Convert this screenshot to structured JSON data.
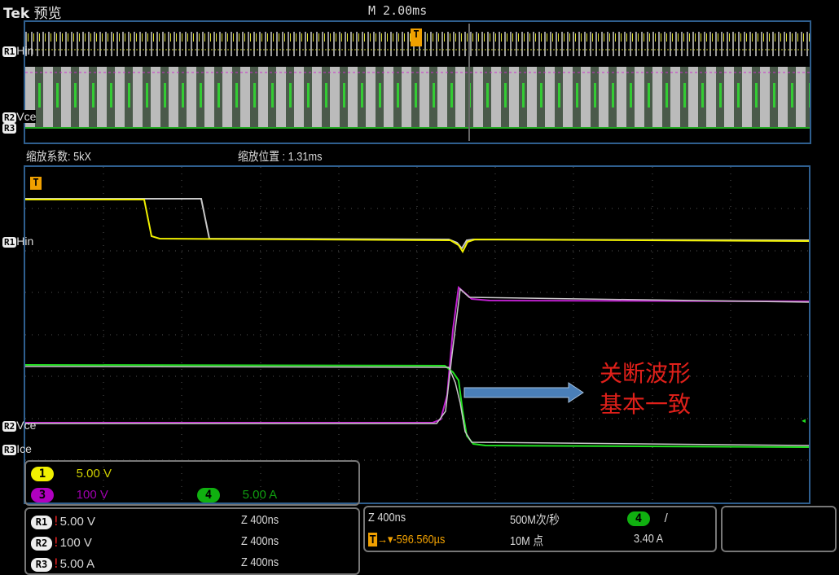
{
  "header": {
    "brand": "Tek",
    "mode": "预览",
    "timebase": "M 2.00ms"
  },
  "overview": {
    "labels": {
      "r1": "R1",
      "hin": "Hin",
      "r2": "R2",
      "r3": "R3",
      "vce": "Vce"
    },
    "trigger": "T"
  },
  "zoom_info": {
    "factor": "缩放系数: 5kX",
    "position_label": "缩放位置",
    "position_value": ": 1.31ms"
  },
  "main": {
    "trigger": "T",
    "labels": {
      "r1": "R1",
      "hin": "Hin",
      "r2": "R2",
      "vce": "Vce",
      "r3": "R3",
      "ice": "Ice"
    }
  },
  "annotation": {
    "line1": "关断波形",
    "line2": "基本一致"
  },
  "channels": [
    {
      "num": "1",
      "scale": "5.00 V",
      "color": "#f0f000"
    },
    {
      "num": "3",
      "scale": "100 V",
      "color": "#b000c0"
    },
    {
      "num": "4",
      "scale": "5.00 A",
      "color": "#10b010"
    }
  ],
  "refs": [
    {
      "name": "R1",
      "scale": "5.00 V",
      "zoom": "Z 400ns"
    },
    {
      "name": "R2",
      "scale": "100 V",
      "zoom": "Z 400ns"
    },
    {
      "name": "R3",
      "scale": "5.00 A",
      "zoom": "Z 400ns"
    }
  ],
  "acq": {
    "zoom": "Z 400ns",
    "trigger_pos": "-596.560µs",
    "rate": "500M次/秒",
    "points": "10M 点",
    "trig_ch": "4",
    "slope": "/",
    "trig_level": "3.40 A"
  },
  "colors": {
    "ch1": "#f0f000",
    "ch3": "#c020d0",
    "ch4": "#20e020",
    "ref": "#c8c8c8",
    "accent": "#f0a000",
    "annotation": "#e0201a",
    "arrow": "#4a7fb8"
  }
}
